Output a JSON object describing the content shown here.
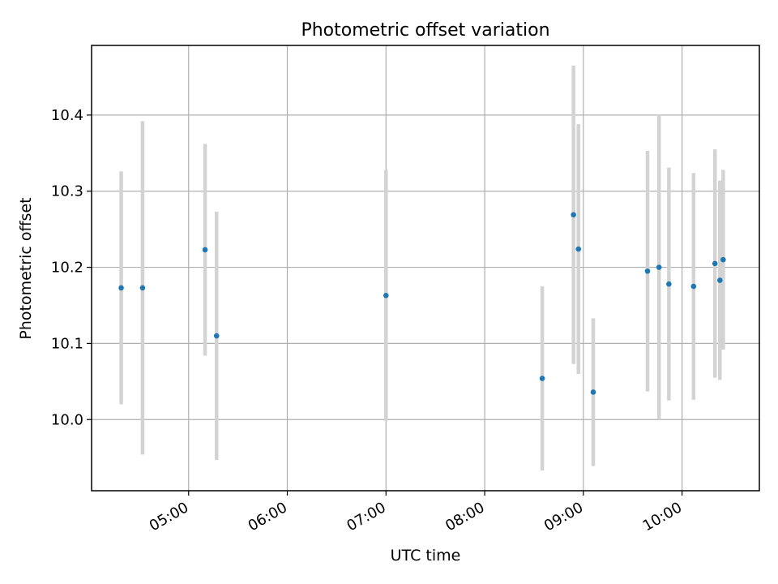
{
  "chart_data": {
    "type": "scatter",
    "title": "Photometric offset variation",
    "xlabel": "UTC time",
    "ylabel": "Photometric offset",
    "x_axis_type": "time",
    "xlim": [
      "04:01",
      "10:47"
    ],
    "ylim": [
      9.9065,
      10.4915
    ],
    "xticks": [
      "05:00",
      "06:00",
      "07:00",
      "08:00",
      "09:00",
      "10:00"
    ],
    "yticks": [
      10.0,
      10.1,
      10.2,
      10.3,
      10.4
    ],
    "ytick_labels": [
      "10.0",
      "10.1",
      "10.2",
      "10.3",
      "10.4"
    ],
    "grid": true,
    "legend": false,
    "series": [
      {
        "marker_color": "#1f77b4",
        "errorbar_color": "#d3d3d3",
        "points": [
          {
            "x": "04:19",
            "y": 10.173,
            "yerr": 0.153
          },
          {
            "x": "04:32",
            "y": 10.173,
            "yerr": 0.219
          },
          {
            "x": "05:10",
            "y": 10.223,
            "yerr": 0.139
          },
          {
            "x": "05:17",
            "y": 10.11,
            "yerr": 0.163
          },
          {
            "x": "07:00",
            "y": 10.163,
            "yerr": 0.165
          },
          {
            "x": "08:35",
            "y": 10.054,
            "yerr": 0.121
          },
          {
            "x": "08:54",
            "y": 10.269,
            "yerr": 0.196
          },
          {
            "x": "08:57",
            "y": 10.224,
            "yerr": 0.164
          },
          {
            "x": "09:06",
            "y": 10.036,
            "yerr": 0.097
          },
          {
            "x": "09:39",
            "y": 10.195,
            "yerr": 0.158
          },
          {
            "x": "09:46",
            "y": 10.2,
            "yerr": 0.2
          },
          {
            "x": "09:52",
            "y": 10.178,
            "yerr": 0.153
          },
          {
            "x": "10:07",
            "y": 10.175,
            "yerr": 0.149
          },
          {
            "x": "10:20",
            "y": 10.205,
            "yerr": 0.15
          },
          {
            "x": "10:23",
            "y": 10.183,
            "yerr": 0.131
          },
          {
            "x": "10:25",
            "y": 10.21,
            "yerr": 0.118
          }
        ]
      }
    ]
  }
}
